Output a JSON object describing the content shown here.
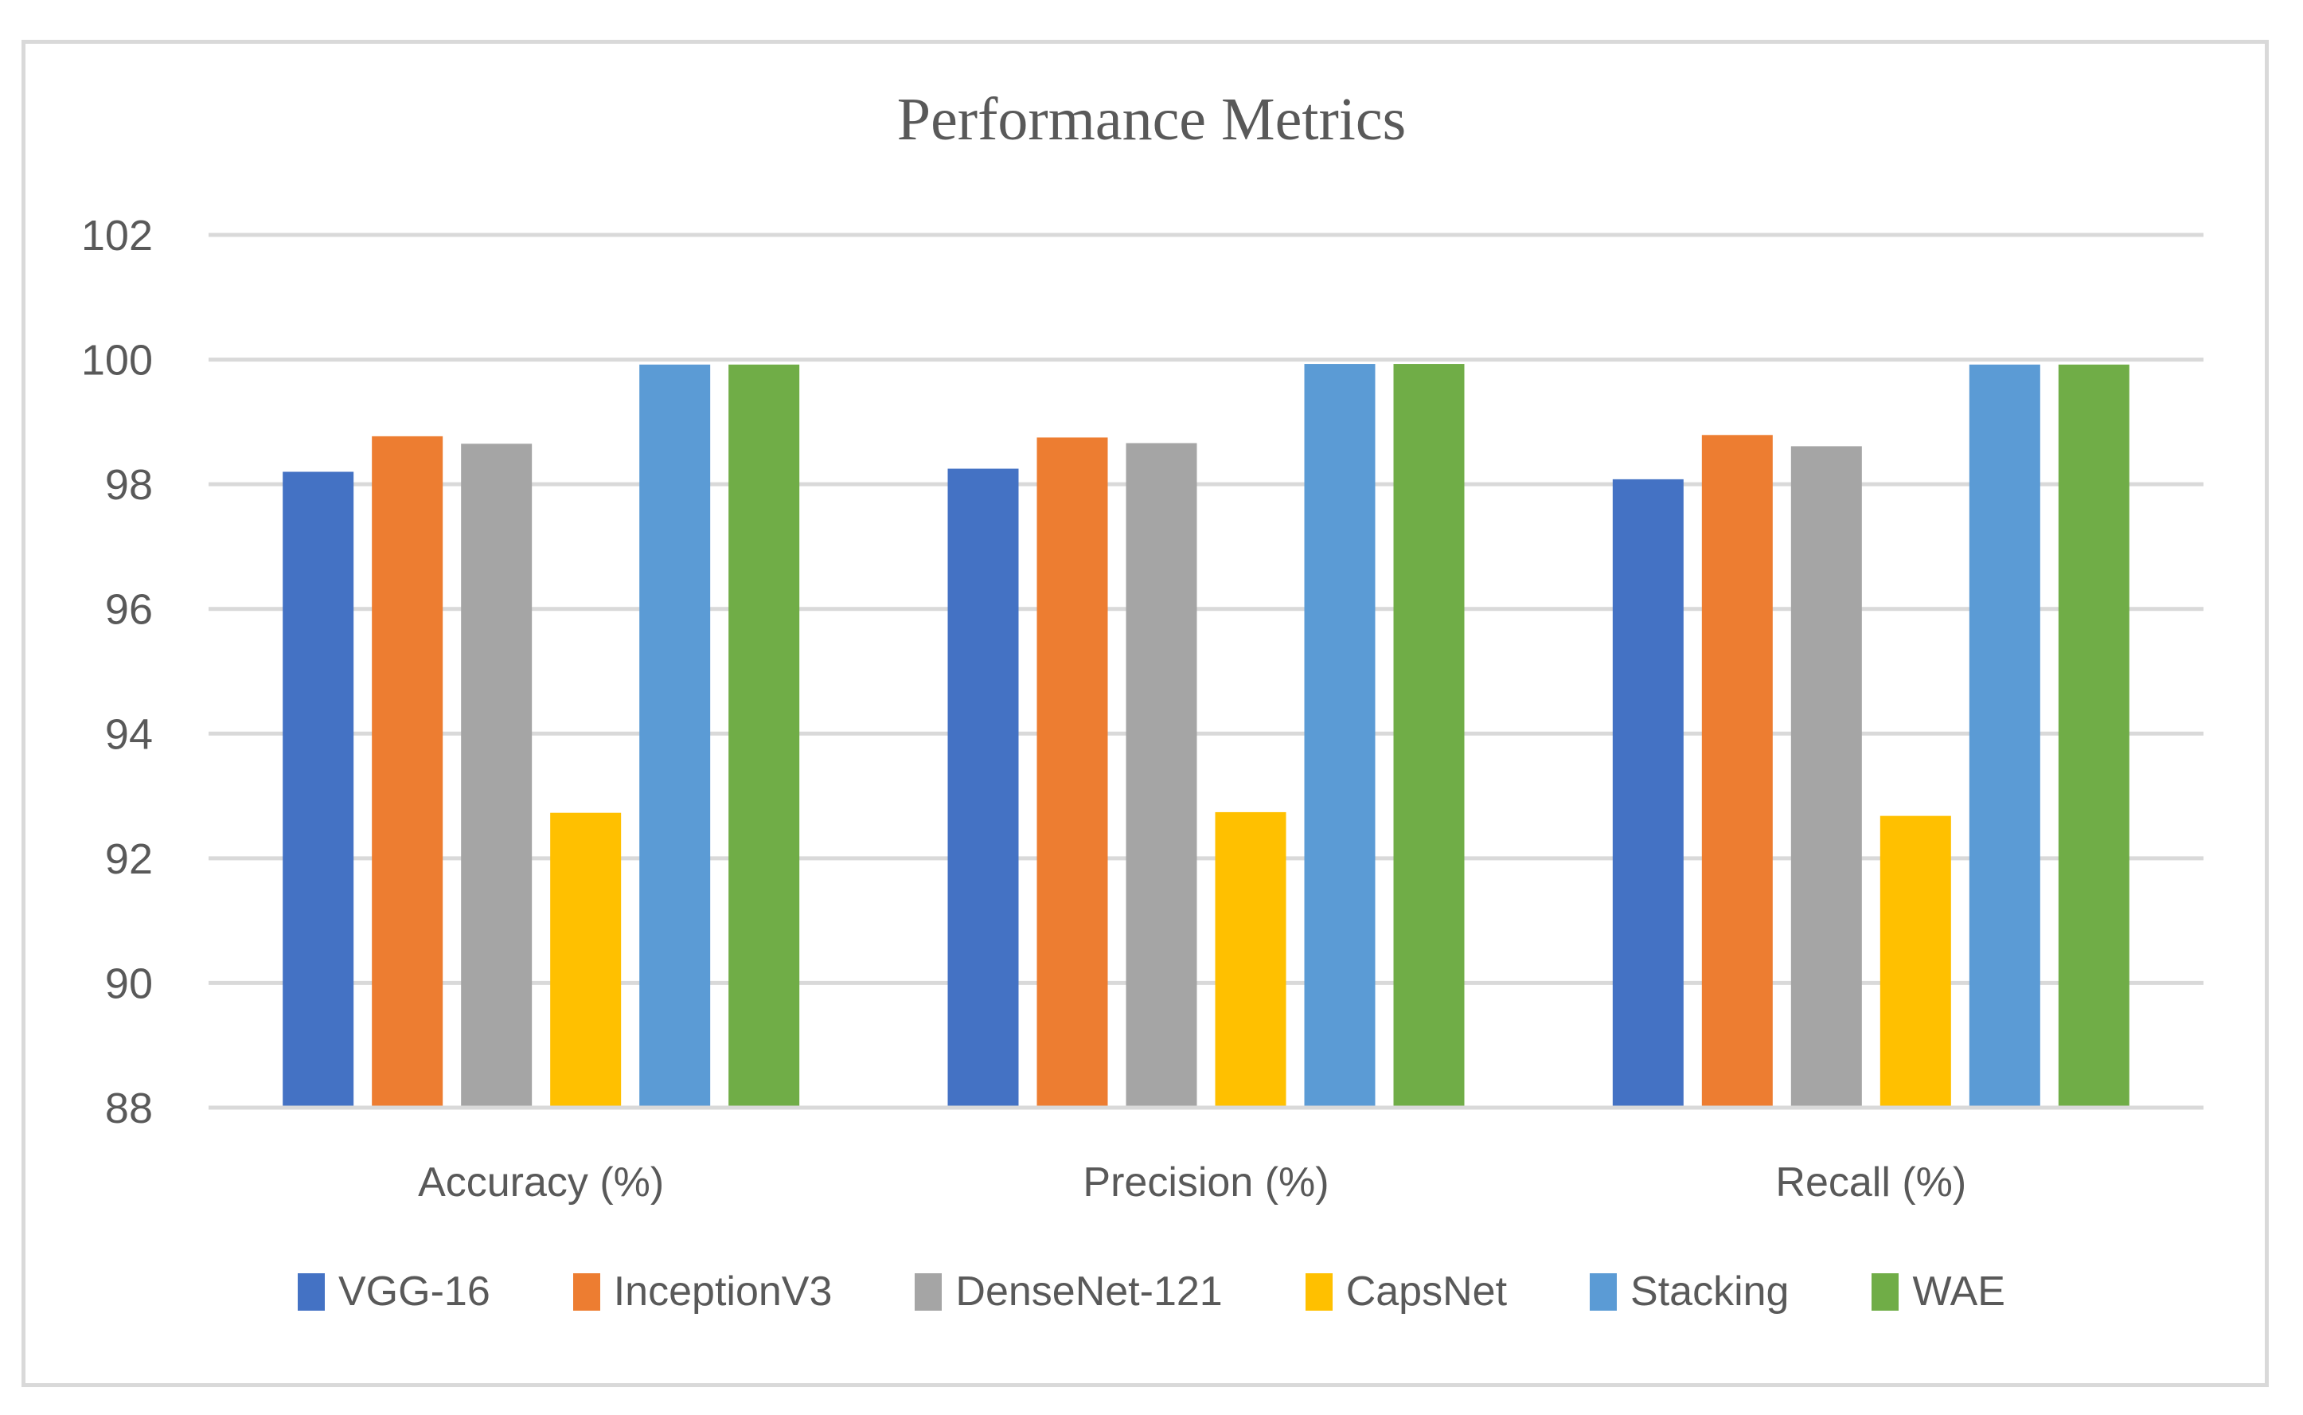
{
  "title": "Performance Metrics",
  "chart_data": {
    "type": "bar",
    "title": "Performance Metrics",
    "categories": [
      "Accuracy (%)",
      "Precision (%)",
      "Recall (%)"
    ],
    "series": [
      {
        "name": "VGG-16",
        "color": "#4472C4",
        "values": [
          98.2,
          98.25,
          98.08
        ]
      },
      {
        "name": "InceptionV3",
        "color": "#ED7D31",
        "values": [
          98.77,
          98.75,
          98.79
        ]
      },
      {
        "name": "DenseNet-121",
        "color": "#A5A5A5",
        "values": [
          98.65,
          98.66,
          98.61
        ]
      },
      {
        "name": "CapsNet",
        "color": "#FFC000",
        "values": [
          92.73,
          92.74,
          92.68
        ]
      },
      {
        "name": "Stacking",
        "color": "#5B9BD5",
        "values": [
          99.92,
          99.93,
          99.92
        ]
      },
      {
        "name": "WAE",
        "color": "#70AD47",
        "values": [
          99.92,
          99.93,
          99.92
        ]
      }
    ],
    "ylim": [
      88,
      102
    ],
    "yticks": [
      88,
      90,
      92,
      94,
      96,
      98,
      100,
      102
    ],
    "grid": true,
    "legend_position": "bottom",
    "xlabel": "",
    "ylabel": ""
  },
  "colors": {
    "text": "#595959",
    "gridline": "#D9D9D9",
    "frame": "#D9D9D9",
    "background": "#FFFFFF"
  }
}
